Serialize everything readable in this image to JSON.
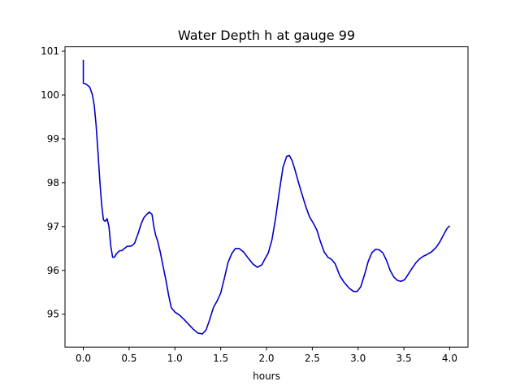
{
  "chart_data": {
    "type": "line",
    "title": "Water Depth h at gauge 99",
    "xlabel": "hours",
    "ylabel": "",
    "xlim": [
      -0.2,
      4.2
    ],
    "ylim": [
      94.25,
      101.1
    ],
    "xticks": [
      0.0,
      0.5,
      1.0,
      1.5,
      2.0,
      2.5,
      3.0,
      3.5,
      4.0
    ],
    "xtick_labels": [
      "0.0",
      "0.5",
      "1.0",
      "1.5",
      "2.0",
      "2.5",
      "3.0",
      "3.5",
      "4.0"
    ],
    "yticks": [
      95,
      96,
      97,
      98,
      99,
      100,
      101
    ],
    "ytick_labels": [
      "95",
      "96",
      "97",
      "98",
      "99",
      "100",
      "101"
    ],
    "grid": false,
    "line_color": "#0000cc",
    "series": [
      {
        "x": [
          0.0,
          0.0,
          0.03,
          0.07,
          0.1,
          0.12,
          0.14,
          0.16,
          0.18,
          0.2,
          0.22,
          0.24,
          0.26,
          0.28,
          0.3,
          0.32,
          0.34,
          0.36,
          0.38,
          0.4,
          0.42,
          0.45,
          0.48,
          0.5,
          0.53,
          0.56,
          0.6,
          0.63,
          0.66,
          0.69,
          0.72,
          0.75,
          0.77,
          0.79,
          0.81,
          0.84,
          0.87,
          0.9,
          0.93,
          0.96,
          1.0,
          1.05,
          1.1,
          1.15,
          1.2,
          1.25,
          1.3,
          1.34,
          1.38,
          1.42,
          1.46,
          1.5,
          1.54,
          1.58,
          1.62,
          1.66,
          1.7,
          1.75,
          1.8,
          1.85,
          1.9,
          1.95,
          1.98,
          2.02,
          2.06,
          2.1,
          2.14,
          2.18,
          2.22,
          2.25,
          2.28,
          2.31,
          2.35,
          2.39,
          2.43,
          2.47,
          2.51,
          2.55,
          2.59,
          2.63,
          2.67,
          2.71,
          2.75,
          2.8,
          2.85,
          2.9,
          2.95,
          2.99,
          3.03,
          3.07,
          3.11,
          3.15,
          3.19,
          3.23,
          3.27,
          3.31,
          3.35,
          3.39,
          3.43,
          3.47,
          3.51,
          3.55,
          3.59,
          3.63,
          3.67,
          3.71,
          3.75,
          3.8,
          3.85,
          3.89,
          3.93,
          3.97,
          4.0
        ],
        "y": [
          100.8,
          100.27,
          100.25,
          100.18,
          100.0,
          99.75,
          99.3,
          98.7,
          98.05,
          97.5,
          97.15,
          97.12,
          97.18,
          97.0,
          96.55,
          96.3,
          96.3,
          96.37,
          96.42,
          96.45,
          96.45,
          96.5,
          96.55,
          96.55,
          96.56,
          96.62,
          96.85,
          97.05,
          97.2,
          97.27,
          97.33,
          97.28,
          97.0,
          96.8,
          96.68,
          96.42,
          96.1,
          95.8,
          95.45,
          95.15,
          95.05,
          94.98,
          94.88,
          94.77,
          94.66,
          94.57,
          94.55,
          94.64,
          94.88,
          95.15,
          95.3,
          95.48,
          95.82,
          96.18,
          96.38,
          96.5,
          96.5,
          96.42,
          96.28,
          96.15,
          96.07,
          96.13,
          96.25,
          96.4,
          96.7,
          97.2,
          97.8,
          98.35,
          98.6,
          98.62,
          98.5,
          98.3,
          98.0,
          97.72,
          97.45,
          97.22,
          97.08,
          96.92,
          96.65,
          96.42,
          96.3,
          96.25,
          96.15,
          95.88,
          95.72,
          95.6,
          95.52,
          95.52,
          95.63,
          95.9,
          96.2,
          96.4,
          96.48,
          96.47,
          96.4,
          96.23,
          96.0,
          95.85,
          95.77,
          95.75,
          95.79,
          95.92,
          96.05,
          96.17,
          96.26,
          96.32,
          96.36,
          96.42,
          96.52,
          96.64,
          96.8,
          96.95,
          97.02
        ]
      }
    ]
  }
}
